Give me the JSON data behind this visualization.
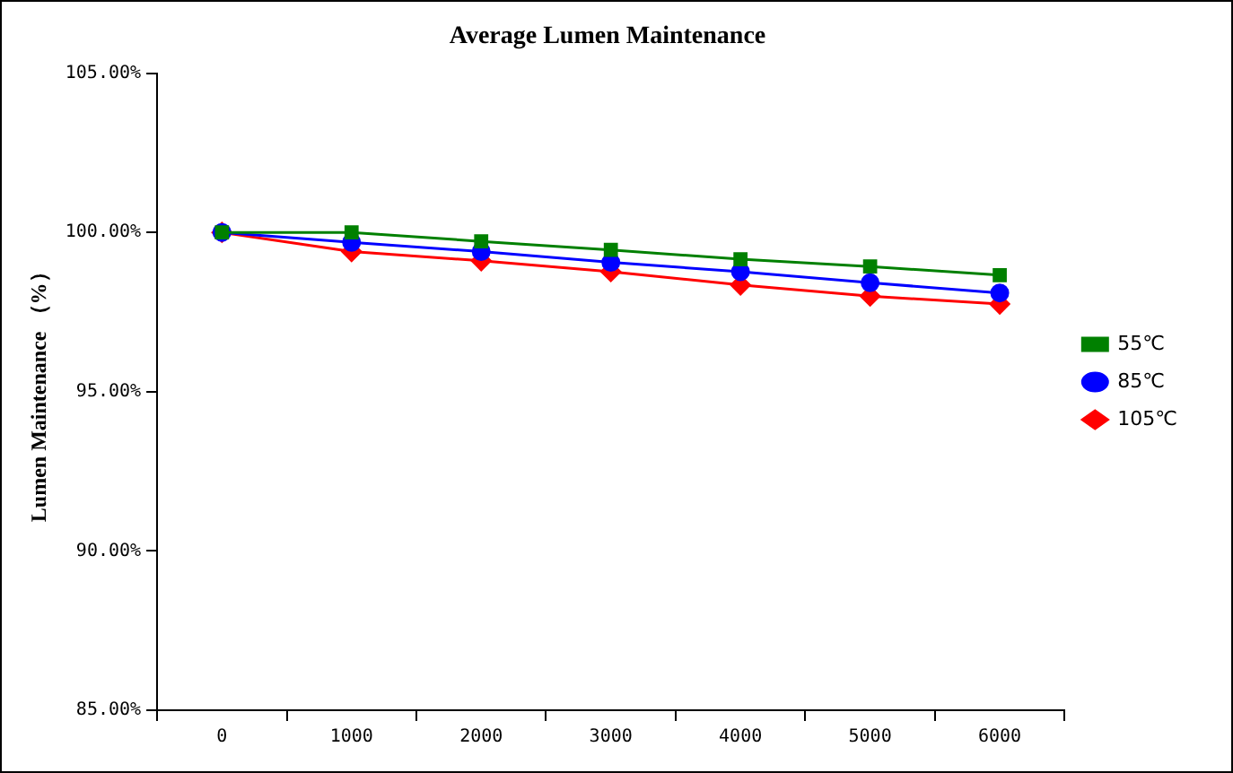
{
  "chart_data": {
    "type": "line",
    "title": "Average Lumen Maintenance",
    "ylabel": "Lumen Maintenance （%）",
    "categories": [
      "0",
      "1000",
      "2000",
      "3000",
      "4000",
      "5000",
      "6000"
    ],
    "ylim": [
      85,
      105
    ],
    "yticks": [
      {
        "value": 85,
        "label": "85.00%"
      },
      {
        "value": 90,
        "label": "90.00%"
      },
      {
        "value": 95,
        "label": "95.00%"
      },
      {
        "value": 100,
        "label": "100.00%"
      },
      {
        "value": 105,
        "label": "105.00%"
      }
    ],
    "series": [
      {
        "name": "55℃",
        "color": "#008000",
        "marker": "square",
        "values": [
          100,
          100,
          99.72,
          99.45,
          99.16,
          98.93,
          98.66
        ]
      },
      {
        "name": "85℃",
        "color": "#0000ff",
        "marker": "circle",
        "values": [
          100,
          99.69,
          99.4,
          99.06,
          98.77,
          98.42,
          98.1
        ]
      },
      {
        "name": "105℃",
        "color": "#ff0000",
        "marker": "diamond",
        "values": [
          100,
          99.4,
          99.11,
          98.77,
          98.35,
          98,
          97.75
        ]
      }
    ],
    "grid": false,
    "legend": "right"
  }
}
